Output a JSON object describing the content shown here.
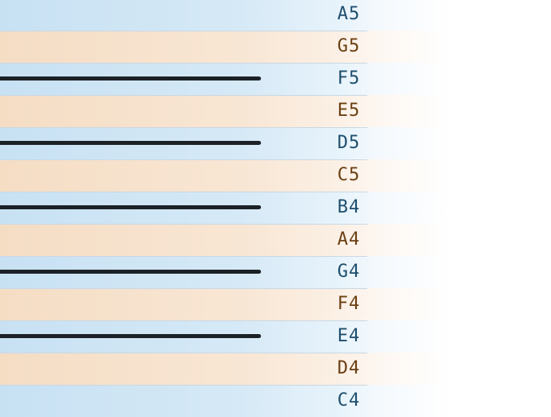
{
  "rows": [
    {
      "note": "A5",
      "kind": "line",
      "staff_line": false
    },
    {
      "note": "G5",
      "kind": "space",
      "staff_line": false
    },
    {
      "note": "F5",
      "kind": "line",
      "staff_line": true
    },
    {
      "note": "E5",
      "kind": "space",
      "staff_line": false
    },
    {
      "note": "D5",
      "kind": "line",
      "staff_line": true
    },
    {
      "note": "C5",
      "kind": "space",
      "staff_line": false
    },
    {
      "note": "B4",
      "kind": "line",
      "staff_line": true
    },
    {
      "note": "A4",
      "kind": "space",
      "staff_line": false
    },
    {
      "note": "G4",
      "kind": "line",
      "staff_line": true
    },
    {
      "note": "F4",
      "kind": "space",
      "staff_line": false
    },
    {
      "note": "E4",
      "kind": "line",
      "staff_line": true
    },
    {
      "note": "D4",
      "kind": "space",
      "staff_line": false
    },
    {
      "note": "C4",
      "kind": "line",
      "staff_line": false
    }
  ],
  "colors": {
    "line_row": "#c7e1f3",
    "space_row": "#f5ddc4",
    "line_label": "#1e4e6e",
    "space_label": "#6b3f12",
    "staff_line": "#1b2126"
  }
}
